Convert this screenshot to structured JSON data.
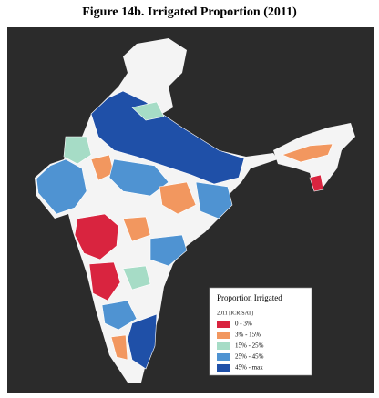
{
  "title": "Figure 14b. Irrigated Proportion (2011)",
  "legend": {
    "title": "Proportion Irrigated",
    "subtitle": "2011 [ICRISAT]",
    "items": [
      {
        "label": "0 - 3%",
        "color": "#d9243f"
      },
      {
        "label": "3% - 15%",
        "color": "#f2975f"
      },
      {
        "label": "15% - 25%",
        "color": "#a6dcc6"
      },
      {
        "label": "25% - 45%",
        "color": "#4f93d2"
      },
      {
        "label": "45% - max",
        "color": "#1f50a8"
      }
    ]
  }
}
